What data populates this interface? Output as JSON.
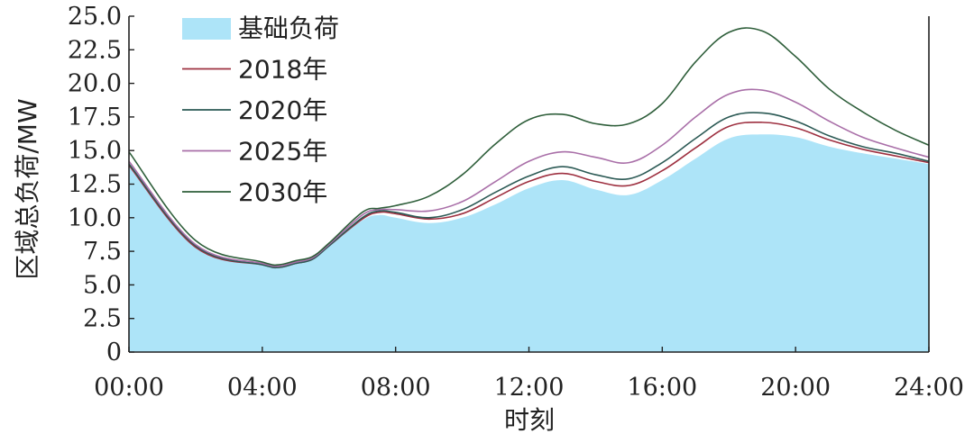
{
  "chart_data": {
    "type": "area",
    "xlabel": "时刻",
    "ylabel": "区域总负荷/MW",
    "xlim": [
      0,
      24
    ],
    "ylim": [
      0,
      25
    ],
    "x_tick_labels": [
      "00:00",
      "04:00",
      "08:00",
      "12:00",
      "16:00",
      "20:00",
      "24:00"
    ],
    "y_tick_labels": [
      "0",
      "2.5",
      "5.0",
      "7.5",
      "10.0",
      "12.5",
      "15.0",
      "17.5",
      "20.0",
      "22.5",
      "25.0"
    ],
    "legend_position": "top-left",
    "grid": false,
    "x": [
      0,
      2,
      4,
      4.5,
      5,
      5.5,
      6,
      7,
      7.5,
      8,
      9,
      10,
      11,
      12,
      13,
      14,
      15,
      16,
      17,
      18,
      19,
      20,
      21,
      22,
      23,
      24
    ],
    "series": [
      {
        "name": "基础负荷",
        "kind": "area",
        "color": "#ade4f8",
        "values": [
          13.8,
          7.8,
          6.5,
          6.3,
          6.6,
          6.9,
          7.9,
          9.8,
          10.2,
          10.0,
          9.6,
          10.0,
          11.0,
          12.2,
          12.8,
          12.1,
          11.7,
          12.8,
          14.4,
          15.9,
          16.2,
          16.0,
          15.3,
          14.8,
          14.4,
          14.0
        ]
      },
      {
        "name": "2018年",
        "kind": "line",
        "color": "#9e3040",
        "values": [
          13.9,
          7.8,
          6.5,
          6.3,
          6.6,
          6.9,
          7.9,
          9.9,
          10.4,
          10.3,
          9.9,
          10.3,
          11.5,
          12.7,
          13.3,
          12.7,
          12.4,
          13.5,
          15.2,
          16.8,
          17.1,
          16.7,
          15.8,
          15.1,
          14.6,
          14.1
        ]
      },
      {
        "name": "2020年",
        "kind": "line",
        "color": "#2c5a55",
        "values": [
          14.0,
          7.9,
          6.5,
          6.3,
          6.6,
          6.9,
          7.9,
          10.0,
          10.5,
          10.4,
          10.0,
          10.6,
          11.9,
          13.1,
          13.8,
          13.2,
          12.9,
          14.1,
          15.9,
          17.5,
          17.8,
          17.2,
          16.1,
          15.3,
          14.8,
          14.2
        ]
      },
      {
        "name": "2025年",
        "kind": "line",
        "color": "#a96fa8",
        "values": [
          14.2,
          8.0,
          6.6,
          6.4,
          6.7,
          7.0,
          8.0,
          10.2,
          10.6,
          10.6,
          10.5,
          11.2,
          12.7,
          14.2,
          14.9,
          14.5,
          14.1,
          15.4,
          17.5,
          19.2,
          19.5,
          18.6,
          17.2,
          16.0,
          15.2,
          14.5
        ]
      },
      {
        "name": "2030年",
        "kind": "line",
        "color": "#2e5e3a",
        "values": [
          14.9,
          8.3,
          6.7,
          6.5,
          6.8,
          7.1,
          8.1,
          10.4,
          10.7,
          10.9,
          11.6,
          13.2,
          15.5,
          17.3,
          17.7,
          17.0,
          17.0,
          18.5,
          21.6,
          23.8,
          23.9,
          22.0,
          19.6,
          17.9,
          16.5,
          15.4
        ]
      }
    ]
  }
}
